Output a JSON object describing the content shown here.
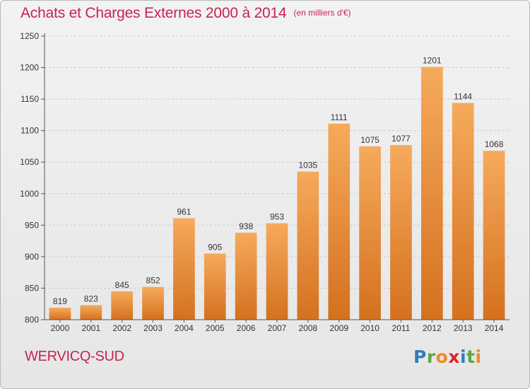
{
  "title": "Achats et Charges Externes 2000 à 2014",
  "subtitle": "(en milliers d'€)",
  "location": "WERVICQ-SUD",
  "logo": {
    "text": "Proxiti",
    "letters": [
      "P",
      "r",
      "o",
      "x",
      "i",
      "t",
      "i"
    ]
  },
  "colors": {
    "bar_top": "#f6aa5c",
    "bar_bottom": "#d4711f",
    "title": "#c6254f"
  },
  "chart_data": {
    "type": "bar",
    "title": "Achats et Charges Externes 2000 à 2014",
    "subtitle": "(en milliers d'€)",
    "categories": [
      "2000",
      "2001",
      "2002",
      "2003",
      "2004",
      "2005",
      "2006",
      "2007",
      "2008",
      "2009",
      "2010",
      "2011",
      "2012",
      "2013",
      "2014"
    ],
    "values": [
      819,
      823,
      845,
      852,
      961,
      905,
      938,
      953,
      1035,
      1111,
      1075,
      1077,
      1201,
      1144,
      1068
    ],
    "ylim": [
      800,
      1250
    ],
    "yticks": [
      800,
      850,
      900,
      950,
      1000,
      1050,
      1100,
      1150,
      1200,
      1250
    ],
    "grid": true,
    "data_labels": true
  }
}
